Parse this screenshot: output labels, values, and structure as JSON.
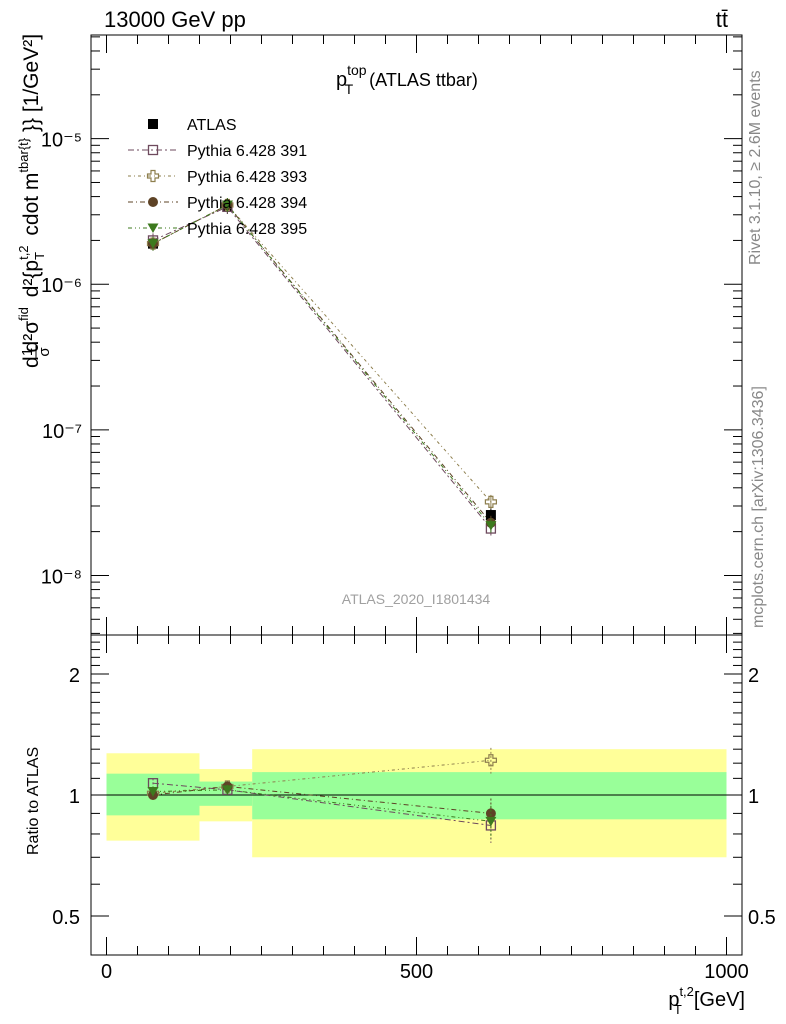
{
  "header": {
    "left_label": "13000 GeV pp",
    "right_label": "tt̄"
  },
  "side_labels": {
    "rivet": "Rivet 3.1.10, ≥ 2.6M events",
    "mcplots": "mcplots.cern.ch [arXiv:1306.3436]"
  },
  "watermark": "ATLAS_2020_I1801434",
  "colors": {
    "atlas": "#000000",
    "pythia391": "#6e4a5e",
    "pythia393": "#8e7f4e",
    "pythia394": "#5e4326",
    "pythia395": "#3d7a1e",
    "band_inner": "#99ff99",
    "band_outer": "#ffff99"
  },
  "chart_data": [
    {
      "type": "line",
      "title": "p_T^top (ATLAS ttbar)",
      "title_parts": {
        "main": "p",
        "sup": "top",
        "sub": "T",
        "rest": "(ATLAS ttbar)"
      },
      "ylabel": "d²σ/dp_T^{t,2} ... [1/GeV²]",
      "ylabel_parts": {
        "prefix": "d",
        "frac_num": "1",
        "frac_den": "σ",
        "d": "d",
        "num": "d²σ",
        "num_sup": "fid",
        "den": "d²{p",
        "den_sub": "T",
        "den_sup": "t,2",
        "den_rest": "cdot m",
        "den_rest_sup": "tbar{t}",
        "suffix": "}} [1/GeV²]"
      },
      "yscale": "log",
      "xlim": [
        -25,
        1025
      ],
      "ylim": [
        3.9e-09,
        5.15e-05
      ],
      "yticks": [
        {
          "value": 1e-08,
          "label": "10⁻⁸"
        },
        {
          "value": 1e-07,
          "label": "10⁻⁷"
        },
        {
          "value": 1e-06,
          "label": "10⁻⁶"
        },
        {
          "value": 1e-05,
          "label": "10⁻⁵"
        }
      ],
      "legend_position": "top-left",
      "series": [
        {
          "name": "ATLAS",
          "marker": "square-filled",
          "color": "#000000",
          "x": [
            75,
            195,
            620
          ],
          "y": [
            1.9e-06,
            3.4e-06,
            2.6e-08
          ]
        },
        {
          "name": "Pythia 6.428 391",
          "marker": "square-open",
          "color": "#6e4a5e",
          "x": [
            75,
            195,
            620
          ],
          "y": [
            2e-06,
            3.4e-06,
            2.1e-08
          ]
        },
        {
          "name": "Pythia 6.428 393",
          "marker": "cross-open",
          "color": "#8e7f4e",
          "x": [
            75,
            195,
            620
          ],
          "y": [
            1.9e-06,
            3.5e-06,
            3.2e-08
          ]
        },
        {
          "name": "Pythia 6.428 394",
          "marker": "circle-filled",
          "color": "#5e4326",
          "x": [
            75,
            195,
            620
          ],
          "y": [
            1.9e-06,
            3.5e-06,
            2.3e-08
          ]
        },
        {
          "name": "Pythia 6.428 395",
          "marker": "triangle-down-filled",
          "color": "#3d7a1e",
          "x": [
            75,
            195,
            620
          ],
          "y": [
            1.9e-06,
            3.5e-06,
            2.2e-08
          ]
        }
      ]
    },
    {
      "type": "line",
      "ylabel": "Ratio to ATLAS",
      "xlabel": "p_T^{t,2} [GeV]",
      "xlabel_parts": {
        "main": "p",
        "sub": "T",
        "sup": "t,2",
        "rest": "[GeV]"
      },
      "yscale": "log",
      "xlim": [
        -25,
        1025
      ],
      "ylim": [
        0.4,
        2.5
      ],
      "xticks": [
        0,
        500,
        1000
      ],
      "yticks": [
        0.5,
        1,
        2
      ],
      "reference_line": 1,
      "bands": [
        {
          "x_from": 0,
          "x_to": 150,
          "inner": [
            0.89,
            1.13
          ],
          "outer": [
            0.77,
            1.27
          ]
        },
        {
          "x_from": 150,
          "x_to": 235,
          "inner": [
            0.94,
            1.08
          ],
          "outer": [
            0.86,
            1.16
          ]
        },
        {
          "x_from": 235,
          "x_to": 1000,
          "inner": [
            0.87,
            1.14
          ],
          "outer": [
            0.7,
            1.3
          ]
        }
      ],
      "series": [
        {
          "name": "Pythia 6.428 391",
          "marker": "square-open",
          "color": "#6e4a5e",
          "x": [
            75,
            195,
            620
          ],
          "y": [
            1.07,
            1.03,
            0.84
          ],
          "err": [
            0.03,
            0.03,
            0.08
          ]
        },
        {
          "name": "Pythia 6.428 393",
          "marker": "cross-open",
          "color": "#8e7f4e",
          "x": [
            75,
            195,
            620
          ],
          "y": [
            1.01,
            1.05,
            1.22
          ],
          "err": [
            0.03,
            0.03,
            0.09
          ]
        },
        {
          "name": "Pythia 6.428 394",
          "marker": "circle-filled",
          "color": "#5e4326",
          "x": [
            75,
            195,
            620
          ],
          "y": [
            1.0,
            1.05,
            0.9
          ],
          "err": [
            0.03,
            0.03,
            0.08
          ]
        },
        {
          "name": "Pythia 6.428 395",
          "marker": "triangle-down-filled",
          "color": "#3d7a1e",
          "x": [
            75,
            195,
            620
          ],
          "y": [
            1.02,
            1.03,
            0.86
          ],
          "err": [
            0.03,
            0.03,
            0.08
          ]
        }
      ]
    }
  ]
}
